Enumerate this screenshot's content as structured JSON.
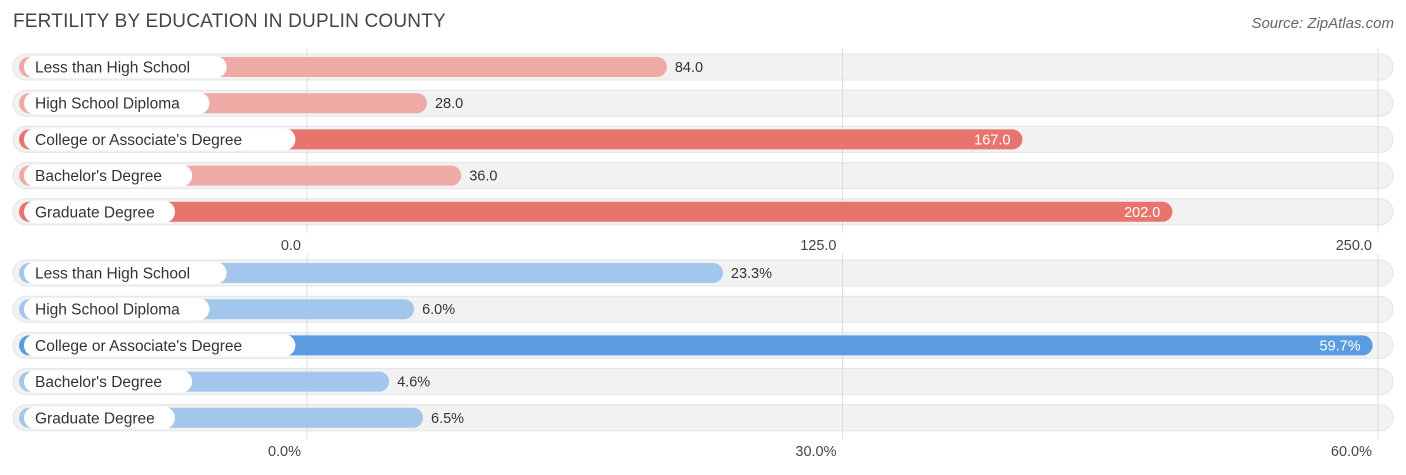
{
  "title": "FERTILITY BY EDUCATION IN DUPLIN COUNTY",
  "source": "Source: ZipAtlas.com",
  "colors": {
    "red_dark": "#e8756d",
    "red_light": "#f0aaa6",
    "blue_dark": "#5b9be0",
    "blue_light": "#a3c6ec",
    "track": "#f2f2f2",
    "grid": "#dddddd"
  },
  "chart_data": [
    {
      "type": "bar",
      "orientation": "horizontal",
      "categories": [
        "Less than High School",
        "High School Diploma",
        "College or Associate's Degree",
        "Bachelor's Degree",
        "Graduate Degree"
      ],
      "values": [
        84.0,
        28.0,
        167.0,
        36.0,
        202.0
      ],
      "value_labels": [
        "84.0",
        "28.0",
        "167.0",
        "36.0",
        "202.0"
      ],
      "xlim": [
        0,
        250
      ],
      "ticks": [
        0,
        125,
        250
      ],
      "tick_labels": [
        "0.0",
        "125.0",
        "250.0"
      ],
      "color_scheme": "red",
      "grid": true
    },
    {
      "type": "bar",
      "orientation": "horizontal",
      "categories": [
        "Less than High School",
        "High School Diploma",
        "College or Associate's Degree",
        "Bachelor's Degree",
        "Graduate Degree"
      ],
      "values": [
        23.3,
        6.0,
        59.7,
        4.6,
        6.5
      ],
      "value_labels": [
        "23.3%",
        "6.0%",
        "59.7%",
        "4.6%",
        "6.5%"
      ],
      "xlim": [
        0,
        60
      ],
      "ticks": [
        0,
        30,
        60
      ],
      "tick_labels": [
        "0.0%",
        "30.0%",
        "60.0%"
      ],
      "color_scheme": "blue",
      "grid": true
    }
  ]
}
